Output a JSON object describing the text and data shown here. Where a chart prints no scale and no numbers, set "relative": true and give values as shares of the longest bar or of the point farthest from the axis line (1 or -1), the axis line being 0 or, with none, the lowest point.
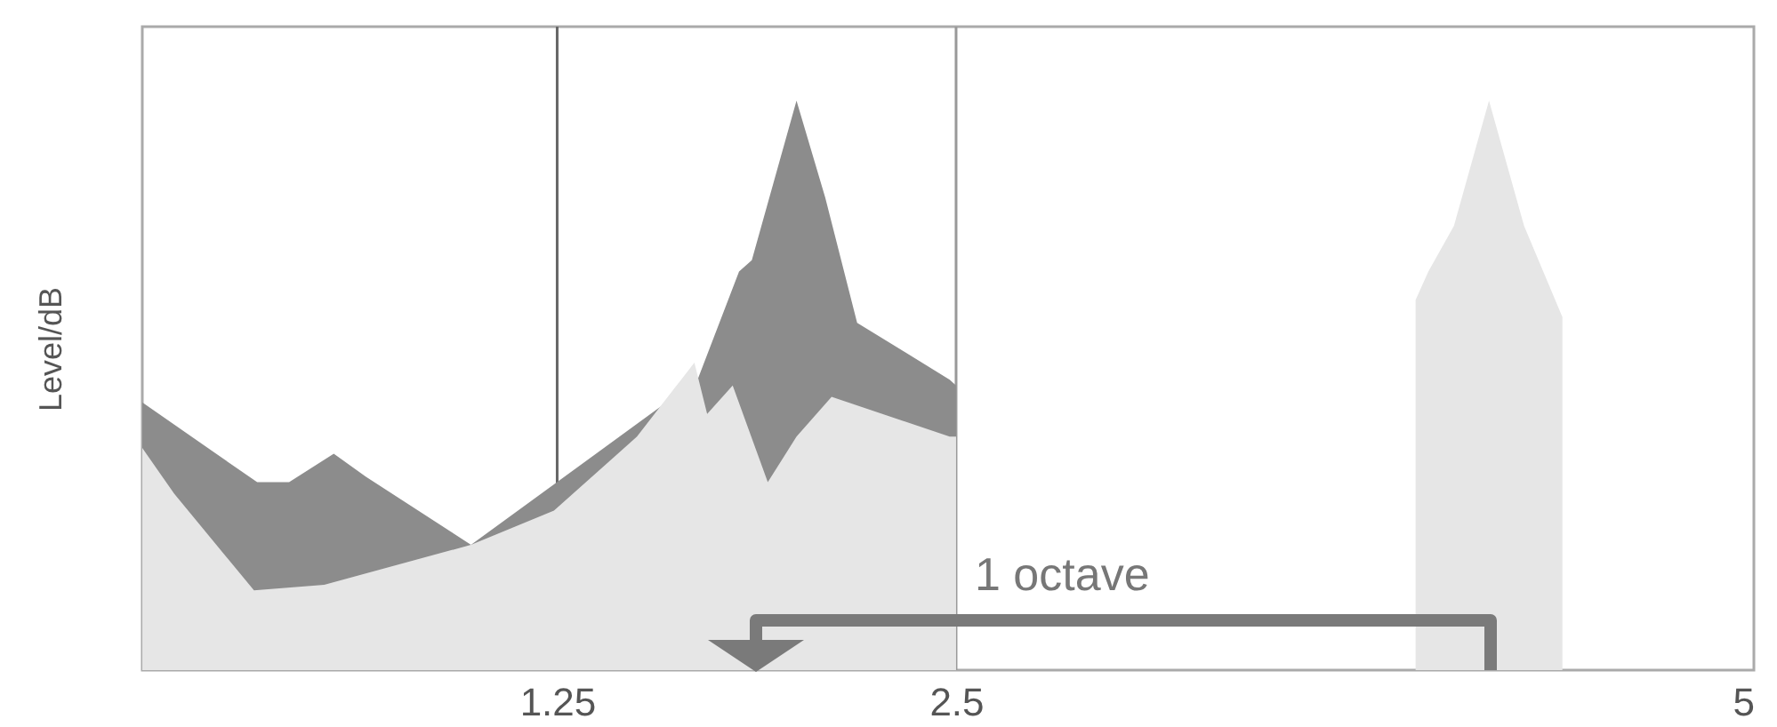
{
  "chart_data": {
    "type": "area",
    "relative": true,
    "ylabel": "Level/dB",
    "xlim": [
      -0.05,
      5
    ],
    "xticks": [
      1.25,
      2.5,
      5
    ],
    "tick_labels": "x",
    "series": [
      {
        "color": "#8c8c8c",
        "x": [
          -0.05,
          0.31,
          0.41,
          0.55,
          0.65,
          0.98,
          1.24,
          1.5,
          1.66,
          1.69,
          1.82,
          1.86,
          2.0,
          2.09,
          2.19,
          2.48,
          2.5
        ],
        "values": [
          0.47,
          0.33,
          0.33,
          0.38,
          0.34,
          0.22,
          null,
          null,
          null,
          0.51,
          0.7,
          0.72,
          1.0,
          0.83,
          0.61,
          0.51,
          0.5
        ]
      },
      {
        "color": "#e6e6e6",
        "x": [
          -0.05,
          0.05,
          0.3,
          0.52,
          0.98,
          1.24,
          1.5,
          1.68,
          1.72,
          1.8,
          1.91,
          2.0,
          2.11,
          2.48,
          2.5,
          2.5,
          3.94,
          3.94,
          3.98,
          4.06,
          4.17,
          4.28,
          4.4
        ],
        "values": [
          0.39,
          0.31,
          0.14,
          0.15,
          0.22,
          0.28,
          0.41,
          0.54,
          0.45,
          0.5,
          0.33,
          0.41,
          0.48,
          0.41,
          0.41,
          0,
          0,
          0.65,
          0.7,
          0.78,
          1.0,
          0.78,
          0.62
        ]
      }
    ],
    "ref_lines": [
      {
        "axis": "x",
        "value": 1.25,
        "color": "#666666"
      },
      {
        "axis": "x",
        "value": 2.5,
        "color": "#999999"
      }
    ],
    "annotations": [
      "1 octave"
    ]
  }
}
